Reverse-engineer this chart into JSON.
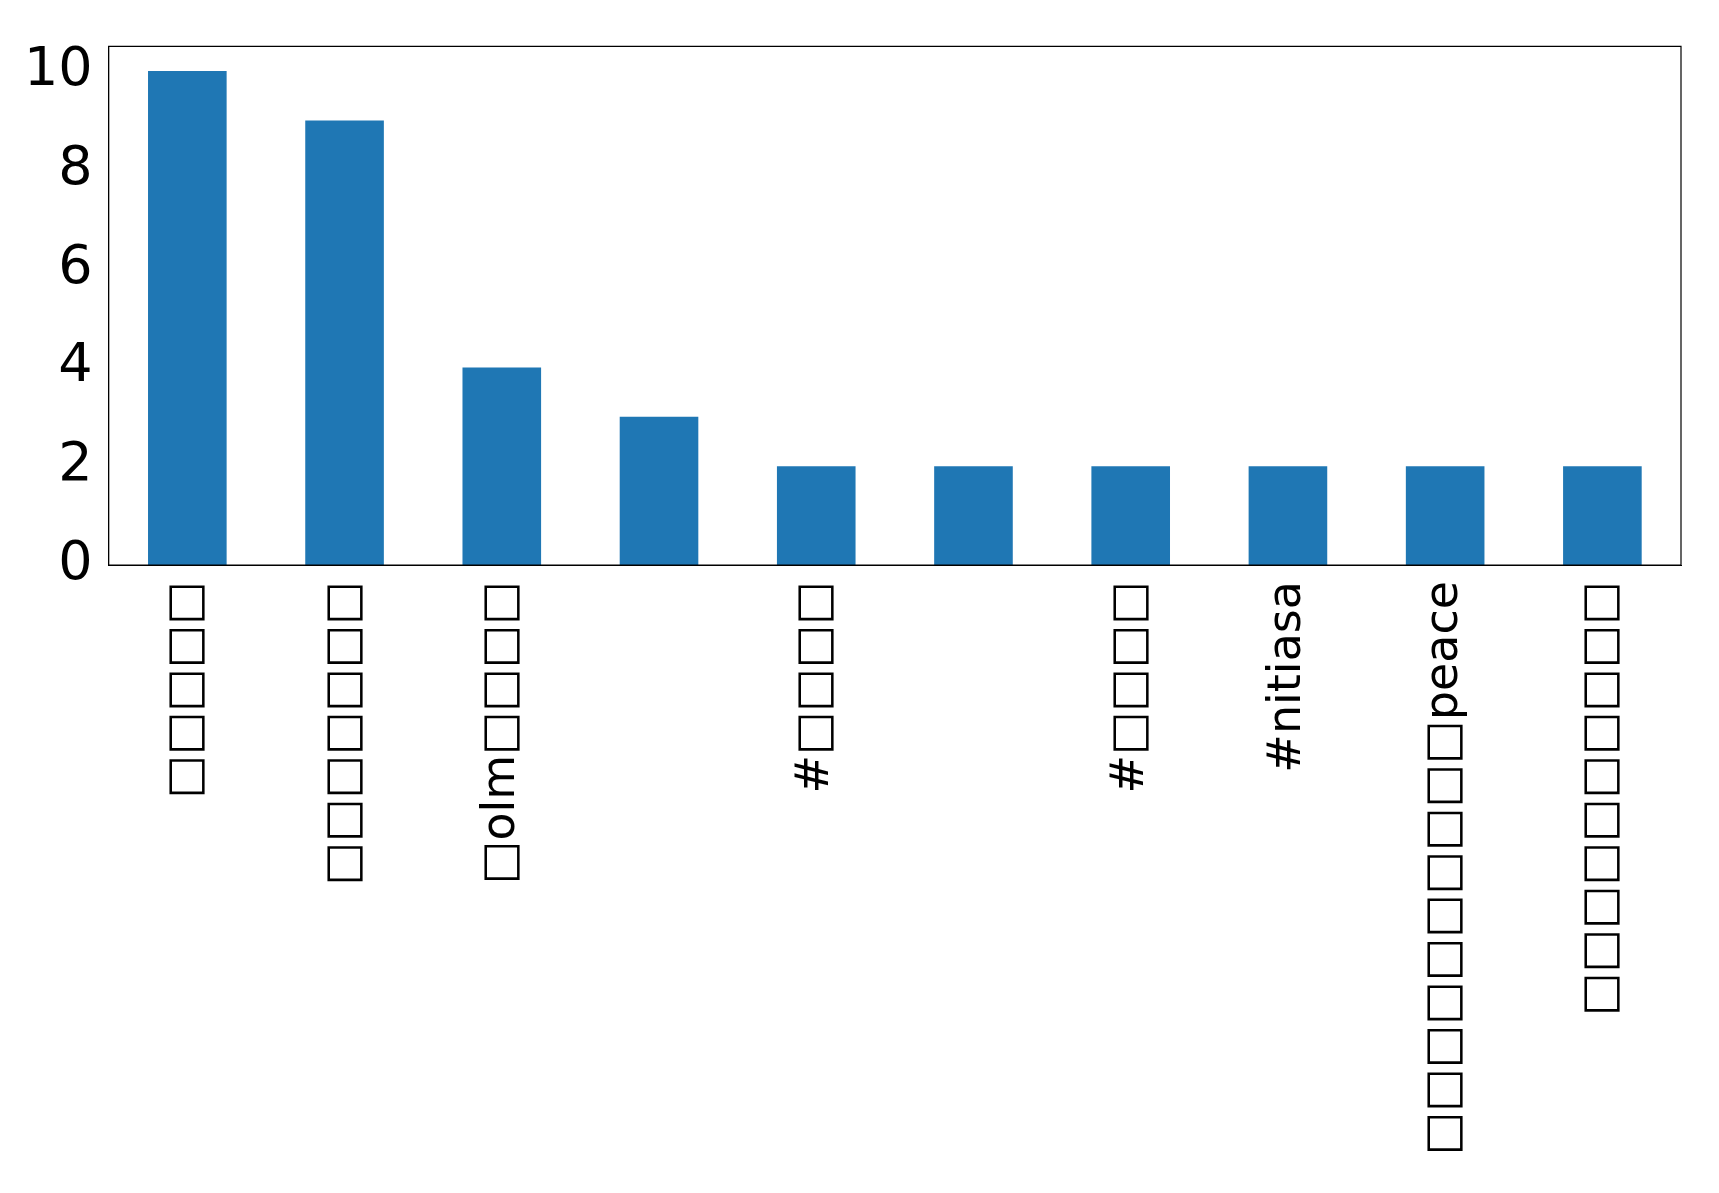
{
  "chart_data": {
    "type": "bar",
    "categories": [
      "□□□□□",
      "□□□□□□□",
      "□olm□□□□",
      null,
      "#□□□□",
      null,
      "#□□□□",
      "#nitiasa",
      "□□□□□□□□□□peace",
      "□□□□□□□□□□"
    ],
    "values": [
      10,
      9,
      4,
      3,
      2,
      2,
      2,
      2,
      2,
      2
    ],
    "color": "#1f77b4",
    "ylim": [
      0,
      10.5
    ],
    "yticks": [
      0,
      2,
      4,
      6,
      8,
      10
    ],
    "grid": false,
    "legend": false
  }
}
